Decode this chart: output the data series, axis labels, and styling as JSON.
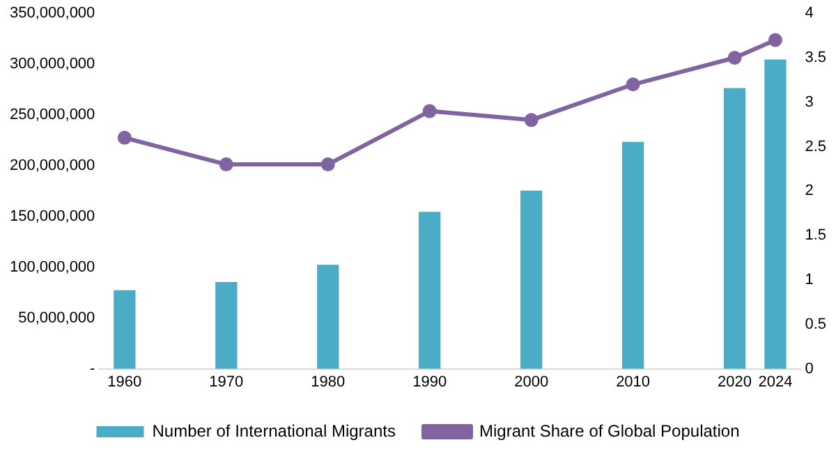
{
  "chart_data": {
    "type": "bar",
    "x": [
      1960,
      1970,
      1980,
      1990,
      2000,
      2010,
      2020,
      2024
    ],
    "series": [
      {
        "name": "Number of International Migrants",
        "color": "#4bacc6",
        "values": [
          77000000,
          85000000,
          102000000,
          154000000,
          175000000,
          223000000,
          276000000,
          304000000
        ]
      },
      {
        "name": "Migrant Share of Global Population",
        "type": "line",
        "axis": "y2",
        "color": "#8064a2",
        "values": [
          2.6,
          2.3,
          2.3,
          2.9,
          2.8,
          3.2,
          3.5,
          3.7
        ]
      }
    ],
    "xlim": [
      1957.5,
      2026.5
    ],
    "xticks": [
      1960,
      1970,
      1980,
      1990,
      2000,
      2010,
      2020,
      2024
    ],
    "ylim": [
      0,
      350000000
    ],
    "yticks": [
      {
        "value": 0,
        "label": "-"
      },
      {
        "value": 50000000,
        "label": "50,000,000"
      },
      {
        "value": 100000000,
        "label": "100,000,000"
      },
      {
        "value": 150000000,
        "label": "150,000,000"
      },
      {
        "value": 200000000,
        "label": "200,000,000"
      },
      {
        "value": 250000000,
        "label": "250,000,000"
      },
      {
        "value": 300000000,
        "label": "300,000,000"
      },
      {
        "value": 350000000,
        "label": "350,000,000"
      }
    ],
    "y2lim": [
      0,
      4
    ],
    "y2ticks": [
      0,
      0.5,
      1,
      1.5,
      2,
      2.5,
      3,
      3.5,
      4
    ],
    "marker": "circle",
    "grid": false,
    "legend": "bottom"
  }
}
